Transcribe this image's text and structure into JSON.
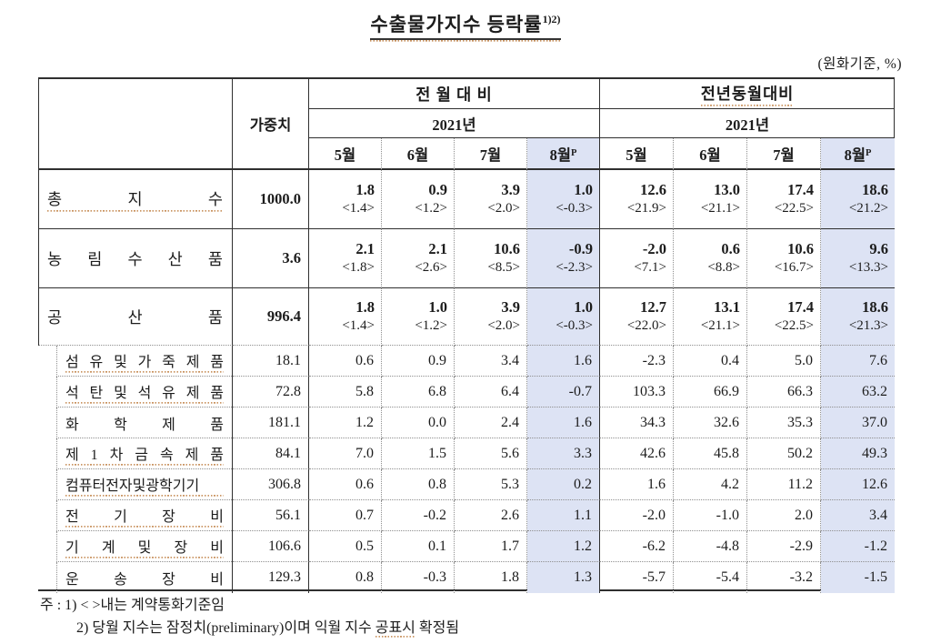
{
  "title": {
    "text": "수출물가지수 등락률",
    "superscript": "1)2)"
  },
  "unit_label": "(원화기준, %)",
  "colors": {
    "highlight": "#dde3f4",
    "squiggle": "#c9935f",
    "line": "#2f2f2f",
    "dot_line": "#8f8f8f",
    "text": "#1c1c1c"
  },
  "table": {
    "weight_header": "가중치",
    "groups": {
      "mom": "전 월 대 비",
      "yoy": "전년동월대비"
    },
    "year": "2021년",
    "months": [
      "5월",
      "6월",
      "7월",
      "8월"
    ],
    "prelim_sup": "P",
    "major_rows": [
      {
        "label": "총 지 수",
        "weight": "1000.0",
        "values": [
          "1.8",
          "0.9",
          "3.9",
          "1.0",
          "12.6",
          "13.0",
          "17.4",
          "18.6"
        ],
        "subs": [
          "<1.4>",
          "<1.2>",
          "<2.0>",
          "<-0.3>",
          "<21.9>",
          "<21.1>",
          "<22.5>",
          "<21.2>"
        ]
      },
      {
        "label": "농 림 수 산 품",
        "weight": "3.6",
        "values": [
          "2.1",
          "2.1",
          "10.6",
          "-0.9",
          "-2.0",
          "0.6",
          "10.6",
          "9.6"
        ],
        "subs": [
          "<1.8>",
          "<2.6>",
          "<8.5>",
          "<-2.3>",
          "<7.1>",
          "<8.8>",
          "<16.7>",
          "<13.3>"
        ]
      },
      {
        "label": "공 산 품",
        "weight": "996.4",
        "values": [
          "1.8",
          "1.0",
          "3.9",
          "1.0",
          "12.7",
          "13.1",
          "17.4",
          "18.6"
        ],
        "subs": [
          "<1.4>",
          "<1.2>",
          "<2.0>",
          "<-0.3>",
          "<22.0>",
          "<21.1>",
          "<22.5>",
          "<21.3>"
        ]
      }
    ],
    "sub_rows": [
      {
        "label": "섬 유 및 가 죽 제 품",
        "weight": "18.1",
        "values": [
          "0.6",
          "0.9",
          "3.4",
          "1.6",
          "-2.3",
          "0.4",
          "5.0",
          "7.6"
        ]
      },
      {
        "label": "석 탄 및 석 유 제 품",
        "weight": "72.8",
        "values": [
          "5.8",
          "6.8",
          "6.4",
          "-0.7",
          "103.3",
          "66.9",
          "66.3",
          "63.2"
        ]
      },
      {
        "label": "화 학 제 품",
        "weight": "181.1",
        "values": [
          "1.2",
          "0.0",
          "2.4",
          "1.6",
          "34.3",
          "32.6",
          "35.3",
          "37.0"
        ]
      },
      {
        "label": "제 1 차 금 속 제 품",
        "weight": "84.1",
        "values": [
          "7.0",
          "1.5",
          "5.6",
          "3.3",
          "42.6",
          "45.8",
          "50.2",
          "49.3"
        ]
      },
      {
        "label": "컴퓨터전자및광학기기",
        "weight": "306.8",
        "values": [
          "0.6",
          "0.8",
          "5.3",
          "0.2",
          "1.6",
          "4.2",
          "11.2",
          "12.6"
        ]
      },
      {
        "label": "전 기 장 비",
        "weight": "56.1",
        "values": [
          "0.7",
          "-0.2",
          "2.6",
          "1.1",
          "-2.0",
          "-1.0",
          "2.0",
          "3.4"
        ]
      },
      {
        "label": "기 계 및 장 비",
        "weight": "106.6",
        "values": [
          "0.5",
          "0.1",
          "1.7",
          "1.2",
          "-6.2",
          "-4.8",
          "-2.9",
          "-1.2"
        ]
      },
      {
        "label": "운 송 장 비",
        "weight": "129.3",
        "values": [
          "0.8",
          "-0.3",
          "1.8",
          "1.3",
          "-5.7",
          "-5.4",
          "-3.2",
          "-1.5"
        ]
      }
    ]
  },
  "notes": {
    "prefix": "주 :",
    "note1": "1) < >내는 계약통화기준임",
    "note2_pre": "2) 당월 지수는 잠정치(preliminary)이며 익월 지수 ",
    "note2_marked": "공표시",
    "note2_post": " 확정됨"
  }
}
